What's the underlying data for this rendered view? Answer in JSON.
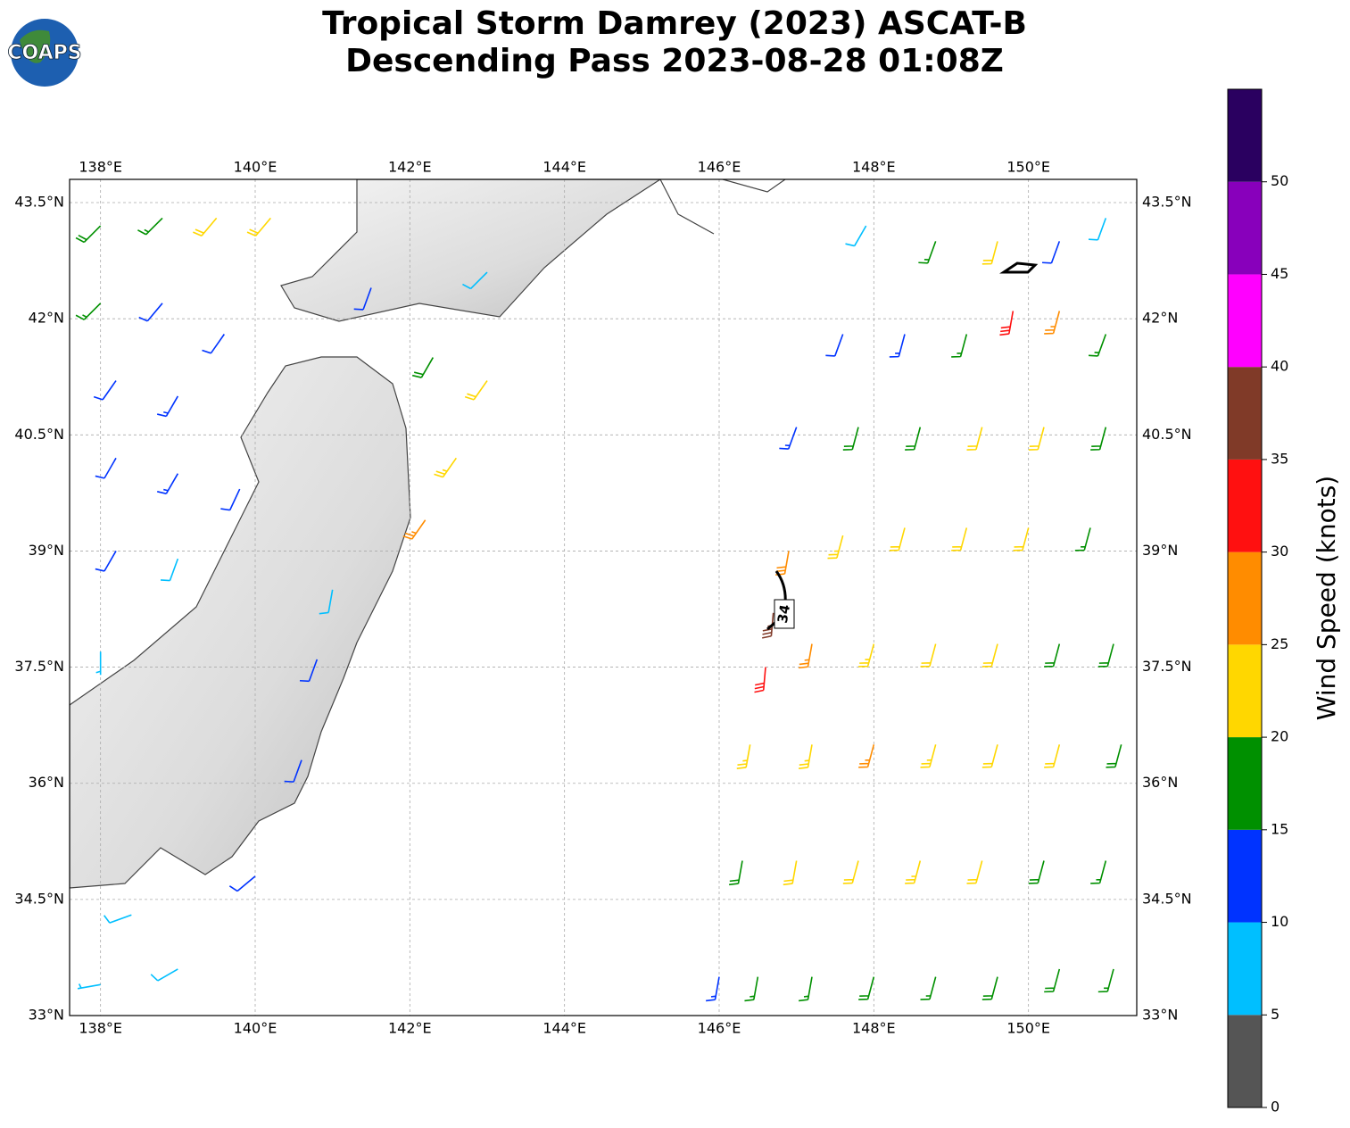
{
  "logo_text": "COAPS",
  "chart_data": {
    "type": "barbs",
    "title": "Tropical Storm Damrey (2023) ASCAT-B",
    "subtitle": "Descending Pass 2023-08-28 01:08Z",
    "xlim": [
      137.6,
      151.4
    ],
    "ylim": [
      33,
      43.8
    ],
    "xticks": [
      {
        "value": 138,
        "label": "138°E"
      },
      {
        "value": 140,
        "label": "140°E"
      },
      {
        "value": 142,
        "label": "142°E"
      },
      {
        "value": 144,
        "label": "144°E"
      },
      {
        "value": 146,
        "label": "146°E"
      },
      {
        "value": 148,
        "label": "148°E"
      },
      {
        "value": 150,
        "label": "150°E"
      }
    ],
    "yticks": [
      {
        "value": 33,
        "label": "33°N"
      },
      {
        "value": 34.5,
        "label": "34.5°N"
      },
      {
        "value": 36,
        "label": "36°N"
      },
      {
        "value": 37.5,
        "label": "37.5°N"
      },
      {
        "value": 39,
        "label": "39°N"
      },
      {
        "value": 40.5,
        "label": "40.5°N"
      },
      {
        "value": 42,
        "label": "42°N"
      },
      {
        "value": 43.5,
        "label": "43.5°N"
      }
    ],
    "grid": true,
    "contour_label": "34",
    "colorbar": {
      "label": "Wind Speed (knots)",
      "clim": [
        0,
        55
      ],
      "ticks": [
        0,
        5,
        10,
        15,
        20,
        25,
        30,
        35,
        40,
        45,
        50
      ],
      "colors": [
        "#555555",
        "#00bfff",
        "#0033ff",
        "#009000",
        "#ffd700",
        "#ff8c00",
        "#ff1010",
        "#803a28",
        "#ff00ff",
        "#8800bb",
        "#2a0060"
      ]
    },
    "observations": [
      {
        "lon": 138.0,
        "lat": 43.2,
        "speed": 18,
        "direction": 225
      },
      {
        "lon": 138.8,
        "lat": 43.3,
        "speed": 17,
        "direction": 225
      },
      {
        "lon": 139.5,
        "lat": 43.3,
        "speed": 22,
        "direction": 220
      },
      {
        "lon": 140.2,
        "lat": 43.3,
        "speed": 22,
        "direction": 220
      },
      {
        "lon": 138.0,
        "lat": 42.2,
        "speed": 16,
        "direction": 225
      },
      {
        "lon": 138.8,
        "lat": 42.2,
        "speed": 12,
        "direction": 220
      },
      {
        "lon": 139.6,
        "lat": 41.8,
        "speed": 12,
        "direction": 215
      },
      {
        "lon": 138.2,
        "lat": 41.2,
        "speed": 12,
        "direction": 215
      },
      {
        "lon": 139.0,
        "lat": 41.0,
        "speed": 14,
        "direction": 210
      },
      {
        "lon": 138.2,
        "lat": 40.2,
        "speed": 12,
        "direction": 210
      },
      {
        "lon": 139.0,
        "lat": 40.0,
        "speed": 13,
        "direction": 210
      },
      {
        "lon": 139.8,
        "lat": 39.8,
        "speed": 11,
        "direction": 205
      },
      {
        "lon": 138.2,
        "lat": 39.0,
        "speed": 12,
        "direction": 210
      },
      {
        "lon": 139.0,
        "lat": 38.9,
        "speed": 9,
        "direction": 200
      },
      {
        "lon": 138.0,
        "lat": 37.7,
        "speed": 7,
        "direction": 180
      },
      {
        "lon": 138.4,
        "lat": 34.3,
        "speed": 8,
        "direction": 250
      },
      {
        "lon": 139.0,
        "lat": 33.6,
        "speed": 8,
        "direction": 240
      },
      {
        "lon": 138.0,
        "lat": 33.4,
        "speed": 7,
        "direction": 260
      },
      {
        "lon": 140.0,
        "lat": 34.8,
        "speed": 12,
        "direction": 230
      },
      {
        "lon": 141.5,
        "lat": 42.4,
        "speed": 12,
        "direction": 200
      },
      {
        "lon": 142.3,
        "lat": 41.5,
        "speed": 18,
        "direction": 210
      },
      {
        "lon": 143.0,
        "lat": 41.2,
        "speed": 22,
        "direction": 215
      },
      {
        "lon": 142.6,
        "lat": 40.2,
        "speed": 23,
        "direction": 215
      },
      {
        "lon": 142.2,
        "lat": 39.4,
        "speed": 27,
        "direction": 215
      },
      {
        "lon": 143.0,
        "lat": 42.6,
        "speed": 9,
        "direction": 225
      },
      {
        "lon": 140.8,
        "lat": 37.6,
        "speed": 11,
        "direction": 200
      },
      {
        "lon": 140.6,
        "lat": 36.3,
        "speed": 12,
        "direction": 200
      },
      {
        "lon": 141.0,
        "lat": 38.5,
        "speed": 8,
        "direction": 190
      },
      {
        "lon": 146.0,
        "lat": 33.5,
        "speed": 13,
        "direction": 190
      },
      {
        "lon": 146.5,
        "lat": 33.5,
        "speed": 17,
        "direction": 190
      },
      {
        "lon": 147.2,
        "lat": 33.5,
        "speed": 17,
        "direction": 190
      },
      {
        "lon": 148.0,
        "lat": 33.5,
        "speed": 18,
        "direction": 195
      },
      {
        "lon": 148.8,
        "lat": 33.5,
        "speed": 17,
        "direction": 195
      },
      {
        "lon": 149.6,
        "lat": 33.5,
        "speed": 18,
        "direction": 195
      },
      {
        "lon": 150.4,
        "lat": 33.6,
        "speed": 18,
        "direction": 195
      },
      {
        "lon": 151.1,
        "lat": 33.6,
        "speed": 17,
        "direction": 195
      },
      {
        "lon": 146.3,
        "lat": 35.0,
        "speed": 18,
        "direction": 190
      },
      {
        "lon": 147.0,
        "lat": 35.0,
        "speed": 20,
        "direction": 190
      },
      {
        "lon": 147.8,
        "lat": 35.0,
        "speed": 22,
        "direction": 195
      },
      {
        "lon": 148.6,
        "lat": 35.0,
        "speed": 23,
        "direction": 195
      },
      {
        "lon": 149.4,
        "lat": 35.0,
        "speed": 21,
        "direction": 195
      },
      {
        "lon": 150.2,
        "lat": 35.0,
        "speed": 18,
        "direction": 195
      },
      {
        "lon": 151.0,
        "lat": 35.0,
        "speed": 17,
        "direction": 195
      },
      {
        "lon": 146.4,
        "lat": 36.5,
        "speed": 23,
        "direction": 190
      },
      {
        "lon": 147.2,
        "lat": 36.5,
        "speed": 24,
        "direction": 190
      },
      {
        "lon": 148.0,
        "lat": 36.5,
        "speed": 26,
        "direction": 195
      },
      {
        "lon": 148.8,
        "lat": 36.5,
        "speed": 23,
        "direction": 195
      },
      {
        "lon": 149.6,
        "lat": 36.5,
        "speed": 22,
        "direction": 195
      },
      {
        "lon": 150.4,
        "lat": 36.5,
        "speed": 21,
        "direction": 195
      },
      {
        "lon": 151.2,
        "lat": 36.5,
        "speed": 18,
        "direction": 195
      },
      {
        "lon": 146.6,
        "lat": 37.5,
        "speed": 31,
        "direction": 185
      },
      {
        "lon": 147.2,
        "lat": 37.8,
        "speed": 27,
        "direction": 190
      },
      {
        "lon": 148.0,
        "lat": 37.8,
        "speed": 23,
        "direction": 195
      },
      {
        "lon": 148.8,
        "lat": 37.8,
        "speed": 22,
        "direction": 195
      },
      {
        "lon": 149.6,
        "lat": 37.8,
        "speed": 21,
        "direction": 195
      },
      {
        "lon": 150.4,
        "lat": 37.8,
        "speed": 19,
        "direction": 195
      },
      {
        "lon": 151.1,
        "lat": 37.8,
        "speed": 18,
        "direction": 195
      },
      {
        "lon": 146.7,
        "lat": 38.2,
        "speed": 36,
        "direction": 185
      },
      {
        "lon": 146.9,
        "lat": 39.0,
        "speed": 28,
        "direction": 190
      },
      {
        "lon": 147.6,
        "lat": 39.2,
        "speed": 24,
        "direction": 195
      },
      {
        "lon": 148.4,
        "lat": 39.3,
        "speed": 22,
        "direction": 195
      },
      {
        "lon": 149.2,
        "lat": 39.3,
        "speed": 20,
        "direction": 195
      },
      {
        "lon": 150.0,
        "lat": 39.3,
        "speed": 21,
        "direction": 195
      },
      {
        "lon": 150.8,
        "lat": 39.3,
        "speed": 17,
        "direction": 195
      },
      {
        "lon": 147.0,
        "lat": 40.6,
        "speed": 14,
        "direction": 200
      },
      {
        "lon": 147.8,
        "lat": 40.6,
        "speed": 18,
        "direction": 195
      },
      {
        "lon": 148.6,
        "lat": 40.6,
        "speed": 19,
        "direction": 195
      },
      {
        "lon": 149.4,
        "lat": 40.6,
        "speed": 21,
        "direction": 195
      },
      {
        "lon": 150.2,
        "lat": 40.6,
        "speed": 21,
        "direction": 195
      },
      {
        "lon": 151.0,
        "lat": 40.6,
        "speed": 19,
        "direction": 195
      },
      {
        "lon": 147.6,
        "lat": 41.8,
        "speed": 12,
        "direction": 200
      },
      {
        "lon": 148.4,
        "lat": 41.8,
        "speed": 13,
        "direction": 195
      },
      {
        "lon": 149.2,
        "lat": 41.8,
        "speed": 17,
        "direction": 195
      },
      {
        "lon": 149.8,
        "lat": 42.1,
        "speed": 31,
        "direction": 190
      },
      {
        "lon": 150.4,
        "lat": 42.1,
        "speed": 26,
        "direction": 195
      },
      {
        "lon": 151.0,
        "lat": 41.8,
        "speed": 15,
        "direction": 200
      },
      {
        "lon": 147.9,
        "lat": 43.2,
        "speed": 8,
        "direction": 210
      },
      {
        "lon": 148.8,
        "lat": 43.0,
        "speed": 16,
        "direction": 200
      },
      {
        "lon": 149.6,
        "lat": 43.0,
        "speed": 20,
        "direction": 195
      },
      {
        "lon": 150.4,
        "lat": 43.0,
        "speed": 12,
        "direction": 200
      },
      {
        "lon": 151.0,
        "lat": 43.3,
        "speed": 9,
        "direction": 200
      }
    ]
  }
}
